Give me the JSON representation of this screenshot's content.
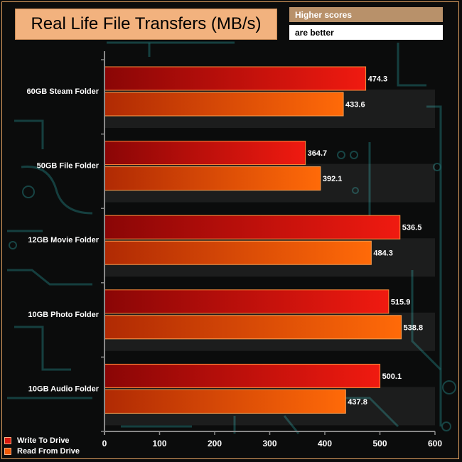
{
  "title": "Real Life File Transfers (MB/s)",
  "notes": [
    "Higher scores",
    "are better"
  ],
  "colors": {
    "write": "#d9180f",
    "read": "#f05a08",
    "background": "#0b0c0c",
    "circuit": "#1f6a6a"
  },
  "legend": [
    "Write To  Drive",
    "Read From  Drive"
  ],
  "chart_data": {
    "type": "bar",
    "orientation": "horizontal",
    "title": "Real Life File Transfers (MB/s)",
    "categories": [
      "60GB Steam Folder",
      "50GB File Folder",
      "12GB Movie Folder",
      "10GB Photo Folder",
      "10GB Audio Folder"
    ],
    "series": [
      {
        "name": "Write To  Drive",
        "values": [
          474.3,
          364.7,
          536.5,
          515.9,
          500.1
        ]
      },
      {
        "name": "Read From  Drive",
        "values": [
          433.6,
          392.1,
          484.3,
          538.8,
          437.8
        ]
      }
    ],
    "xlim": [
      0,
      600
    ],
    "xticks": [
      0,
      100,
      200,
      300,
      400,
      500,
      600
    ],
    "legend_position": "bottom-left",
    "grid": false
  }
}
